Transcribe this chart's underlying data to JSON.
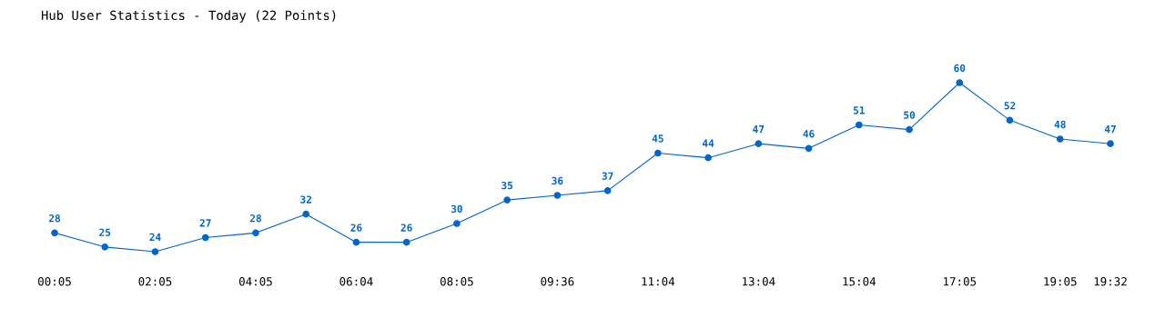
{
  "chart_data": {
    "type": "line",
    "title": "Hub User Statistics - Today (22 Points)",
    "categories": [
      "00:05",
      null,
      "02:05",
      null,
      "04:05",
      null,
      "06:04",
      null,
      "08:05",
      null,
      "09:36",
      null,
      "11:04",
      null,
      "13:04",
      null,
      "15:04",
      null,
      "17:05",
      null,
      "19:05",
      "19:32"
    ],
    "series": [
      {
        "color": "#0066cc",
        "values": [
          28,
          25,
          24,
          27,
          28,
          32,
          26,
          26,
          30,
          35,
          36,
          37,
          45,
          44,
          47,
          46,
          51,
          50,
          60,
          52,
          48,
          47
        ]
      }
    ],
    "data_labels": true,
    "marker": "circle",
    "line_style": "solid",
    "grid": false,
    "legend": false,
    "tick_labels": "x"
  }
}
